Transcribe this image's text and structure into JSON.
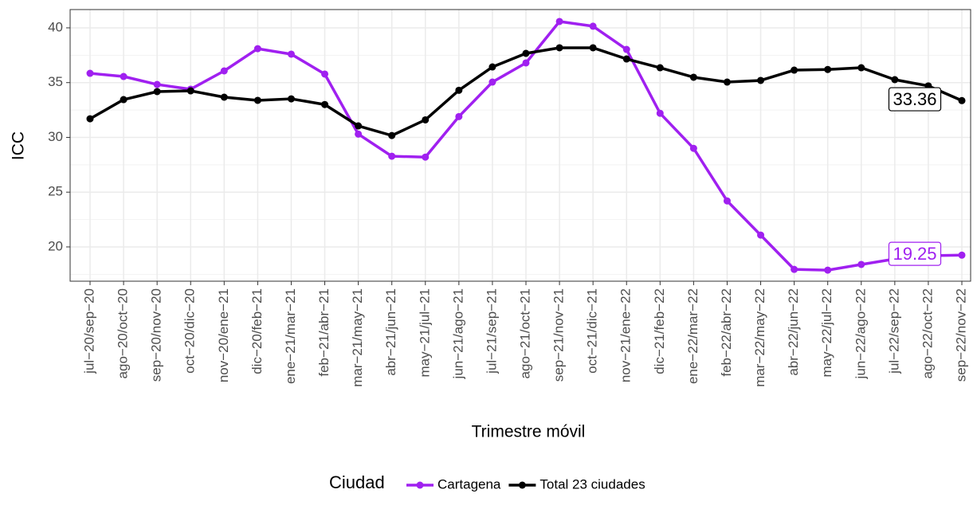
{
  "chart_data": {
    "type": "line",
    "y_label": "ICC",
    "x_label": "Trimestre móvil",
    "legend_title": "Ciudad",
    "legend_position": "bottom",
    "grid": true,
    "categories": [
      "jul−20/sep−20",
      "ago−20/oct−20",
      "sep−20/nov−20",
      "oct−20/dic−20",
      "nov−20/ene−21",
      "dic−20/feb−21",
      "ene−21/mar−21",
      "feb−21/abr−21",
      "mar−21/may−21",
      "abr−21/jun−21",
      "may−21/jul−21",
      "jun−21/ago−21",
      "jul−21/sep−21",
      "ago−21/oct−21",
      "sep−21/nov−21",
      "oct−21/dic−21",
      "nov−21/ene−22",
      "dic−21/feb−22",
      "ene−22/mar−22",
      "feb−22/abr−22",
      "mar−22/may−22",
      "abr−22/jun−22",
      "may−22/jul−22",
      "jun−22/ago−22",
      "jul−22/sep−22",
      "ago−22/oct−22",
      "sep−22/nov−22"
    ],
    "series": [
      {
        "name": "Cartagena",
        "color": "#a020f0",
        "values": [
          35.85,
          35.56,
          34.83,
          34.4,
          36.07,
          38.1,
          37.6,
          35.78,
          30.3,
          28.28,
          28.2,
          31.9,
          35.05,
          36.8,
          40.58,
          40.15,
          38.03,
          32.2,
          29.0,
          24.2,
          21.08,
          17.95,
          17.88,
          18.4,
          18.9,
          19.2,
          19.25
        ]
      },
      {
        "name": "Total 23 ciudades",
        "color": "#000000",
        "values": [
          31.7,
          33.45,
          34.18,
          34.25,
          33.67,
          33.38,
          33.52,
          33.0,
          31.05,
          30.17,
          31.6,
          34.3,
          36.43,
          37.67,
          38.18,
          38.18,
          37.16,
          36.36,
          35.49,
          35.05,
          35.2,
          36.14,
          36.2,
          36.36,
          35.27,
          34.7,
          33.36
        ]
      }
    ],
    "ylim": [
      16.87,
      41.67
    ],
    "yticks": [
      20,
      25,
      30,
      35,
      40
    ]
  }
}
